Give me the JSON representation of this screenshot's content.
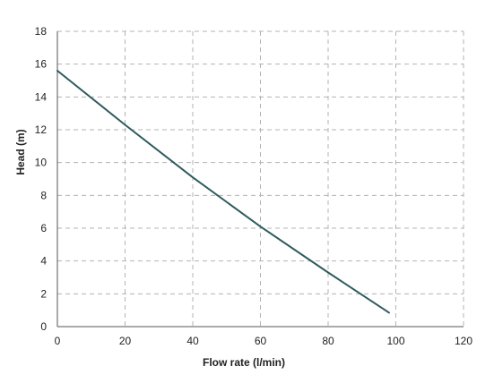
{
  "chart_data": {
    "type": "line",
    "title": "",
    "xlabel": "Flow rate (l/min)",
    "ylabel": "Head (m)",
    "xlim": [
      0,
      120
    ],
    "ylim": [
      0,
      18
    ],
    "x_ticks": [
      0,
      20,
      40,
      60,
      80,
      100,
      120
    ],
    "y_ticks": [
      0,
      2,
      4,
      6,
      8,
      10,
      12,
      14,
      16,
      18
    ],
    "grid": true,
    "grid_style": "dashed",
    "legend": "none",
    "series": [
      {
        "color": "#2e5b5f",
        "x": [
          0,
          20,
          40,
          60,
          80,
          98
        ],
        "y": [
          15.6,
          12.3,
          9.1,
          6.1,
          3.3,
          0.85
        ]
      }
    ],
    "colors": {
      "grid": "#b3b3b3",
      "axis": "#555555",
      "line": "#2e5b5f"
    }
  }
}
